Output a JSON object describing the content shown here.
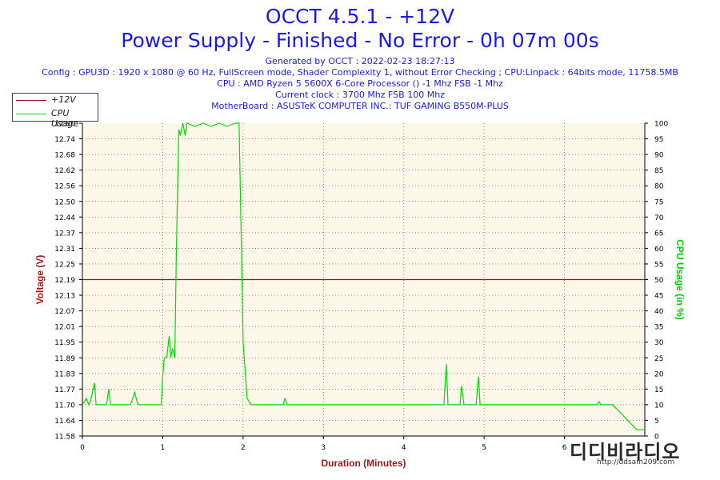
{
  "header": {
    "title_line1": "OCCT 4.5.1 - +12V",
    "title_line2": "Power Supply - Finished - No Error - 0h 07m 00s",
    "generated": "Generated by OCCT : 2022-02-23 18:27:13",
    "config": "Config : GPU3D : 1920 x 1080 @ 60 Hz, FullScreen mode, Shader Complexity 1, without Error Checking ; CPU:Linpack : 64bits mode, 11758.5MB",
    "cpu": "CPU : AMD Ryzen 5 5600X 6-Core Processor () -1 Mhz FSB -1 Mhz",
    "clock": "Current clock : 3700 Mhz FSB 100 Mhz",
    "motherboard": "MotherBoard : ASUSTeK COMPUTER INC.: TUF GAMING B550M-PLUS"
  },
  "legend": {
    "items": [
      {
        "label": "+12V",
        "color": "#8b1a1a"
      },
      {
        "label": "CPU Usage",
        "color": "#00dd00"
      }
    ]
  },
  "watermark": {
    "big": "디디비라디오",
    "small": "http://ddsam209.com"
  },
  "colors": {
    "plot_bg": "#fdf7ea",
    "voltage": "#8b1a1a",
    "cpu": "#00dd00",
    "left_axis_label": "#a11a1a",
    "right_axis_label": "#00cc00",
    "x_axis_label": "#a11a1a"
  },
  "chart_data": {
    "type": "line",
    "xlabel": "Duration (Minutes)",
    "ylabel_left": "Voltage (V)",
    "ylabel_right": "CPU Usage (in %)",
    "xlim": [
      0,
      7
    ],
    "x_ticks": [
      0,
      1,
      2,
      3,
      4,
      5,
      6
    ],
    "ylim_left": [
      11.58,
      12.8
    ],
    "y_ticks_left": [
      "11.58",
      "11.64",
      "11.70",
      "11.77",
      "11.83",
      "11.89",
      "11.95",
      "12.01",
      "12.07",
      "12.13",
      "12.19",
      "12.25",
      "12.31",
      "12.37",
      "12.44",
      "12.50",
      "12.56",
      "12.62",
      "12.68",
      "12.74",
      "12.80"
    ],
    "ylim_right": [
      0,
      100
    ],
    "y_ticks_right": [
      0,
      5,
      10,
      15,
      20,
      25,
      30,
      35,
      40,
      45,
      50,
      55,
      60,
      65,
      70,
      75,
      80,
      85,
      90,
      95,
      100
    ],
    "grid": true,
    "series": [
      {
        "name": "+12V",
        "axis": "left",
        "x": [
          0,
          7
        ],
        "values": [
          12.19,
          12.19
        ]
      },
      {
        "name": "CPU Usage",
        "axis": "right",
        "x": [
          0,
          0.05,
          0.08,
          0.1,
          0.15,
          0.17,
          0.2,
          0.3,
          0.33,
          0.35,
          0.4,
          0.5,
          0.6,
          0.65,
          0.68,
          0.7,
          0.8,
          0.9,
          0.98,
          1.0,
          1.02,
          1.05,
          1.08,
          1.1,
          1.12,
          1.15,
          1.17,
          1.2,
          1.22,
          1.25,
          1.28,
          1.3,
          1.4,
          1.5,
          1.6,
          1.7,
          1.8,
          1.9,
          1.95,
          1.98,
          2.0,
          2.05,
          2.1,
          2.2,
          2.5,
          2.52,
          2.55,
          3.0,
          3.5,
          4.0,
          4.5,
          4.53,
          4.55,
          4.57,
          4.6,
          4.7,
          4.72,
          4.75,
          4.8,
          4.9,
          4.93,
          4.95,
          4.97,
          5.0,
          5.5,
          6.0,
          6.1,
          6.15,
          6.3,
          6.4,
          6.43,
          6.45,
          6.5,
          6.6,
          6.9,
          7.0
        ],
        "values": [
          10,
          12,
          10,
          11,
          17,
          10,
          10,
          10,
          15,
          10,
          10,
          10,
          10,
          14,
          11,
          10,
          10,
          10,
          10,
          19,
          25,
          25,
          32,
          25,
          28,
          25,
          60,
          98,
          96,
          100,
          96,
          100,
          99,
          100,
          99,
          100,
          99,
          100,
          100,
          60,
          30,
          12,
          10,
          10,
          10,
          12,
          10,
          10,
          10,
          10,
          10,
          23,
          10,
          10,
          10,
          10,
          16,
          10,
          10,
          10,
          19,
          10,
          10,
          10,
          10,
          10,
          10,
          10,
          10,
          10,
          11,
          10,
          10,
          10,
          2,
          2
        ]
      }
    ]
  }
}
